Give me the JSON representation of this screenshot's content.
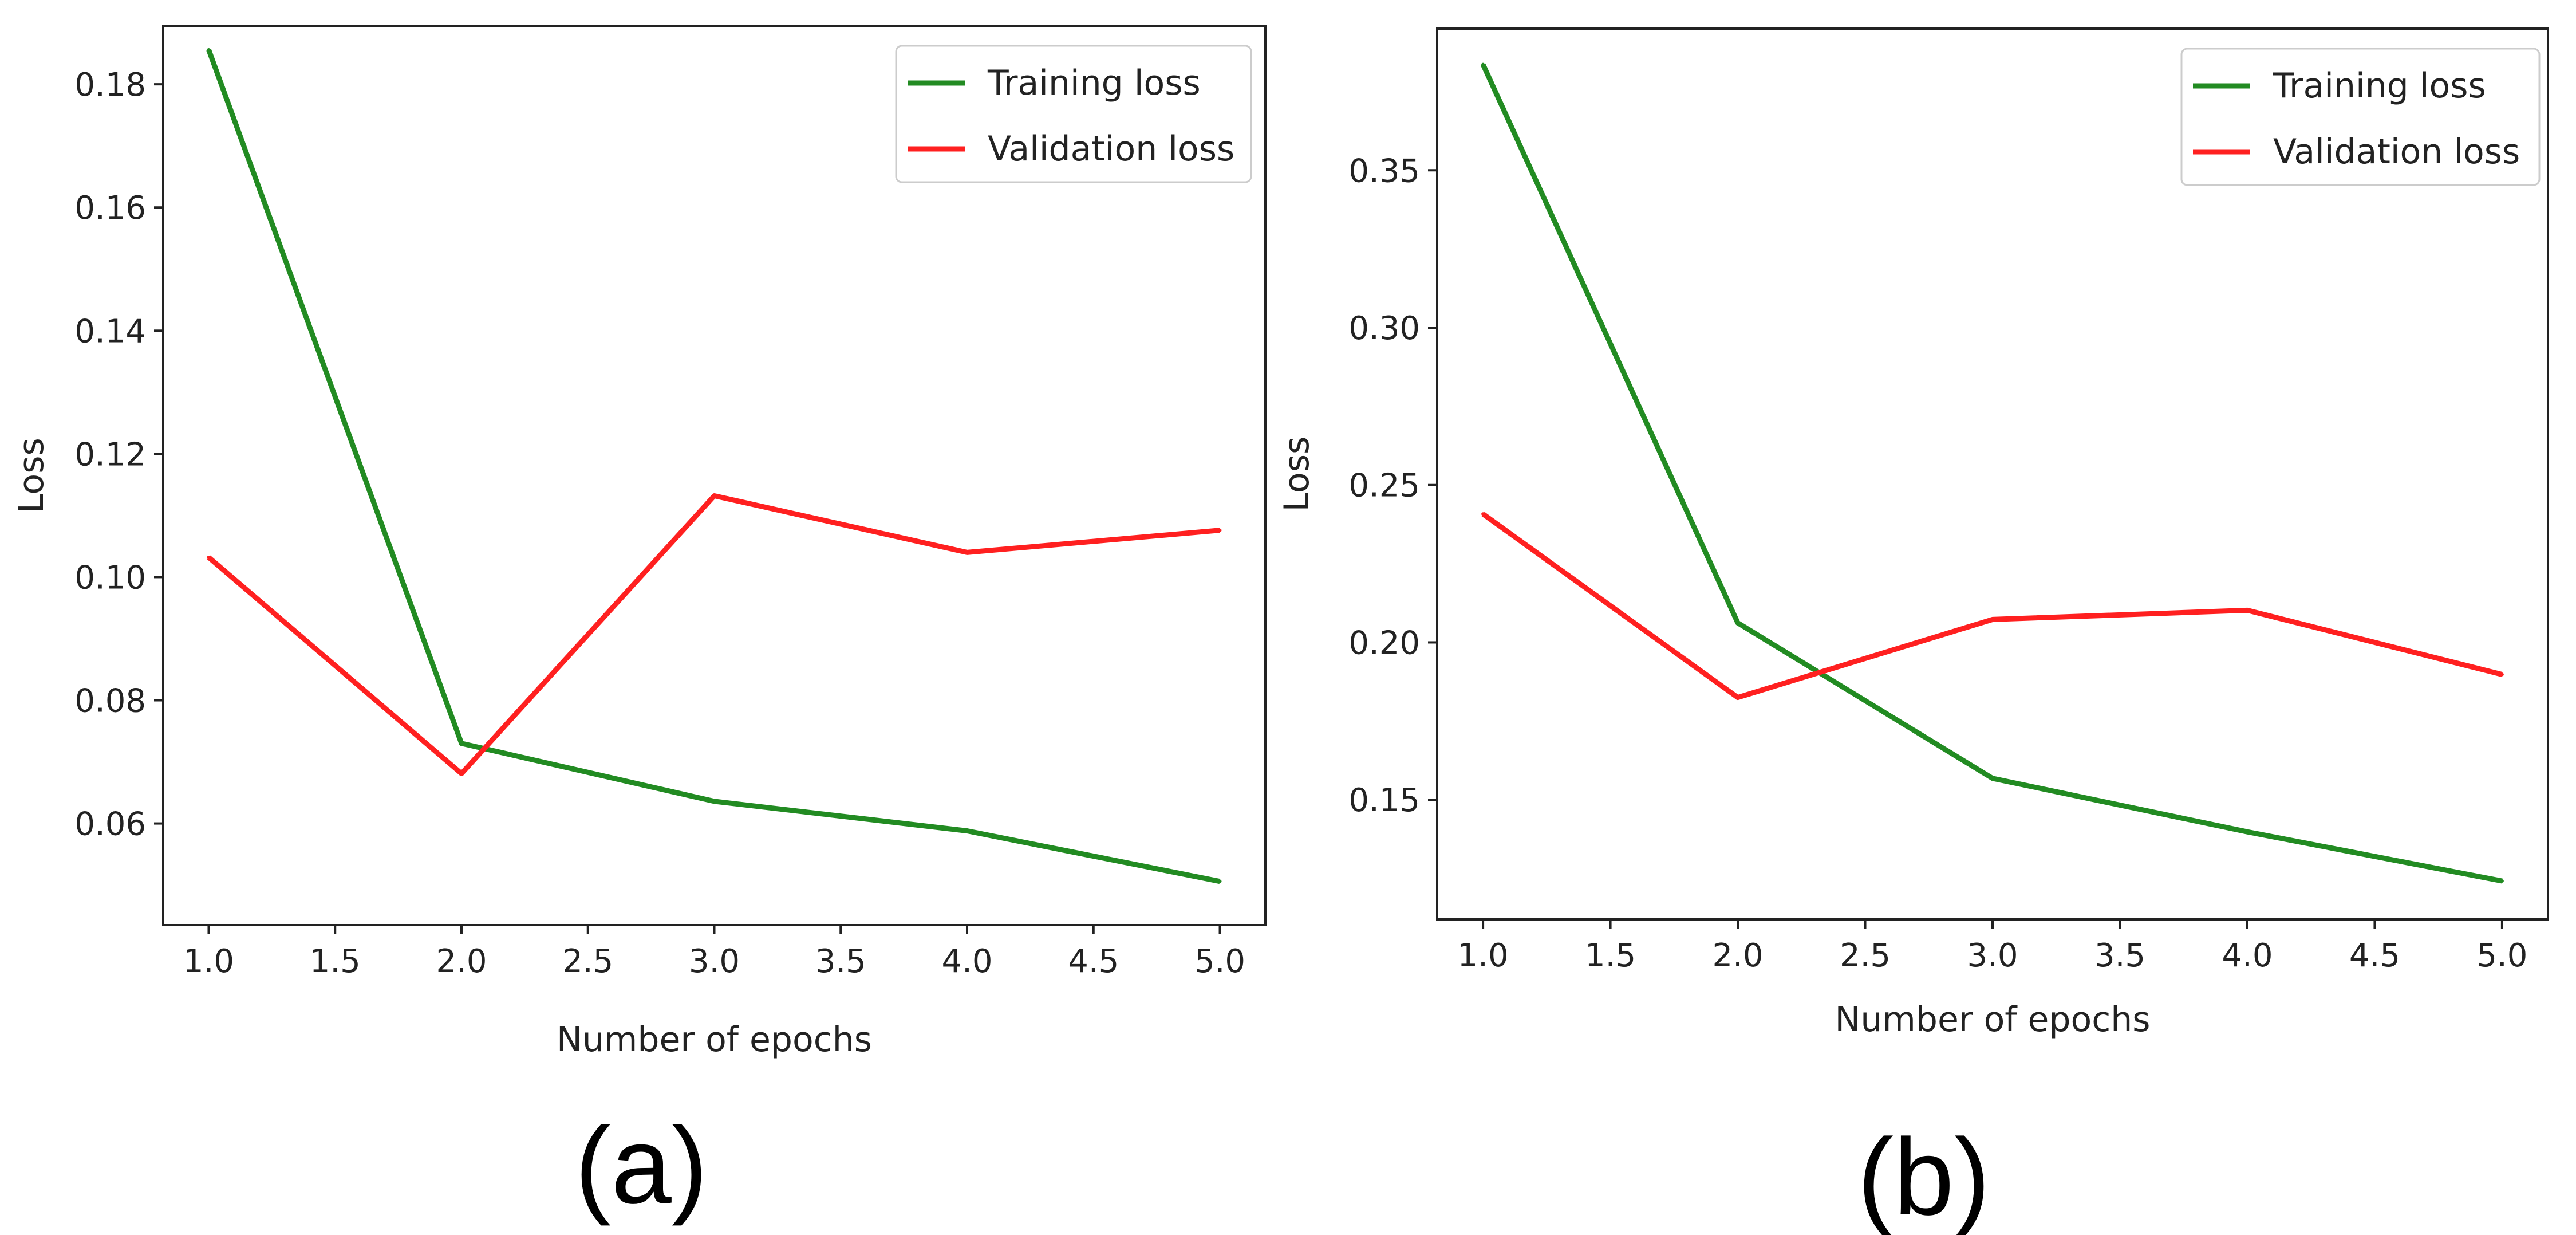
{
  "colors": {
    "training": "#228B22",
    "validation": "#FF2020",
    "axes": "#222222"
  },
  "chart_data": [
    {
      "type": "line",
      "panel_label": "(a)",
      "title": "",
      "xlabel": "Number of epochs",
      "ylabel": "Loss",
      "xlim": [
        0.82,
        5.18
      ],
      "ylim": [
        0.0435,
        0.1895
      ],
      "x_ticks": [
        1.0,
        1.5,
        2.0,
        2.5,
        3.0,
        3.5,
        4.0,
        4.5,
        5.0
      ],
      "x_tick_labels": [
        "1.0",
        "1.5",
        "2.0",
        "2.5",
        "3.0",
        "3.5",
        "4.0",
        "4.5",
        "5.0"
      ],
      "y_ticks": [
        0.06,
        0.08,
        0.1,
        0.12,
        0.14,
        0.16,
        0.18
      ],
      "y_tick_labels": [
        "0.06",
        "0.08",
        "0.10",
        "0.12",
        "0.14",
        "0.16",
        "0.18"
      ],
      "legend_position": "top-right",
      "x": [
        1,
        2,
        3,
        4,
        5
      ],
      "series": [
        {
          "name": "Training loss",
          "color_key": "training",
          "values": [
            0.1856,
            0.073,
            0.0636,
            0.0588,
            0.0506
          ]
        },
        {
          "name": "Validation loss",
          "color_key": "validation",
          "values": [
            0.1032,
            0.0681,
            0.1132,
            0.104,
            0.1076
          ]
        }
      ]
    },
    {
      "type": "line",
      "panel_label": "(b)",
      "title": "",
      "xlabel": "Number of epochs",
      "ylabel": "Loss",
      "xlim": [
        0.82,
        5.18
      ],
      "ylim": [
        0.112,
        0.395
      ],
      "x_ticks": [
        1.0,
        1.5,
        2.0,
        2.5,
        3.0,
        3.5,
        4.0,
        4.5,
        5.0
      ],
      "x_tick_labels": [
        "1.0",
        "1.5",
        "2.0",
        "2.5",
        "3.0",
        "3.5",
        "4.0",
        "4.5",
        "5.0"
      ],
      "y_ticks": [
        0.15,
        0.2,
        0.25,
        0.3,
        0.35
      ],
      "y_tick_labels": [
        "0.15",
        "0.20",
        "0.25",
        "0.30",
        "0.35"
      ],
      "legend_position": "top-right",
      "x": [
        1,
        2,
        3,
        4,
        5
      ],
      "series": [
        {
          "name": "Training loss",
          "color_key": "training",
          "values": [
            0.3836,
            0.2062,
            0.1568,
            0.1398,
            0.1242
          ]
        },
        {
          "name": "Validation loss",
          "color_key": "validation",
          "values": [
            0.2408,
            0.1825,
            0.2073,
            0.2102,
            0.1898
          ]
        }
      ]
    }
  ]
}
